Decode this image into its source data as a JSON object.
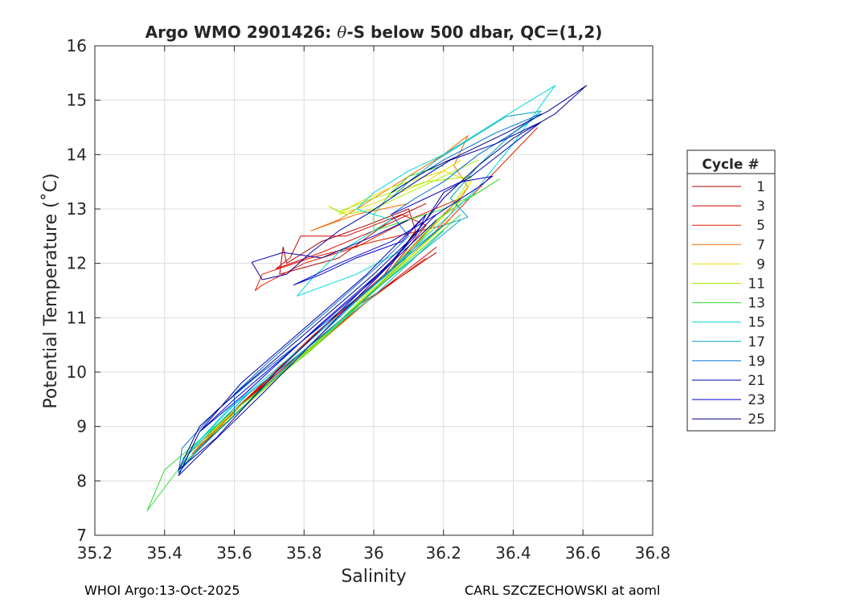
{
  "chart_data": {
    "type": "line",
    "title_main": "Argo WMO 2901426: ",
    "title_theta": "θ",
    "title_rest": "-S below 500 dbar,  QC=(1,2)",
    "xlabel": "Salinity",
    "ylabel": "Potential Temperature (˚C)",
    "xlim": [
      35.2,
      36.8
    ],
    "ylim": [
      7,
      16
    ],
    "xticks": [
      35.2,
      35.4,
      35.6,
      35.8,
      36,
      36.2,
      36.4,
      36.6,
      36.8
    ],
    "xtick_labels": [
      "35.2",
      "35.4",
      "35.6",
      "35.8",
      "36",
      "36.2",
      "36.4",
      "36.6",
      "36.8"
    ],
    "yticks": [
      7,
      8,
      9,
      10,
      11,
      12,
      13,
      14,
      15,
      16
    ],
    "ytick_labels": [
      "7",
      "8",
      "9",
      "10",
      "11",
      "12",
      "13",
      "14",
      "15",
      "16"
    ],
    "grid": true,
    "legend_title": "Cycle #",
    "legend_position": "right",
    "series": [
      {
        "name": "1",
        "color": "#b00000",
        "points": [
          [
            36.18,
            12.2
          ],
          [
            35.95,
            11.2
          ],
          [
            35.8,
            10.4
          ],
          [
            35.62,
            9.4
          ],
          [
            35.55,
            9.0
          ],
          [
            35.65,
            9.6
          ],
          [
            35.82,
            10.6
          ],
          [
            36.02,
            11.7
          ],
          [
            36.12,
            12.6
          ],
          [
            36.1,
            13.0
          ],
          [
            35.98,
            12.7
          ],
          [
            35.85,
            12.4
          ],
          [
            35.75,
            12.0
          ],
          [
            35.74,
            12.3
          ],
          [
            35.73,
            11.8
          ],
          [
            35.9,
            12.1
          ],
          [
            36.05,
            12.8
          ],
          [
            36.15,
            13.1
          ]
        ]
      },
      {
        "name": "3",
        "color": "#d00000",
        "points": [
          [
            36.18,
            12.3
          ],
          [
            35.98,
            11.3
          ],
          [
            35.8,
            10.4
          ],
          [
            35.6,
            9.3
          ],
          [
            35.5,
            8.6
          ],
          [
            35.62,
            9.4
          ],
          [
            35.85,
            10.8
          ],
          [
            36.05,
            11.9
          ],
          [
            36.15,
            12.7
          ],
          [
            36.08,
            12.9
          ],
          [
            35.92,
            12.5
          ],
          [
            35.79,
            12.5
          ],
          [
            35.76,
            12.1
          ],
          [
            35.72,
            11.9
          ],
          [
            35.85,
            12.2
          ],
          [
            36.0,
            12.6
          ],
          [
            36.1,
            12.9
          ]
        ]
      },
      {
        "name": "5",
        "color": "#e82000",
        "points": [
          [
            36.15,
            12.1
          ],
          [
            35.96,
            11.2
          ],
          [
            35.78,
            10.2
          ],
          [
            35.58,
            9.2
          ],
          [
            35.48,
            8.5
          ],
          [
            35.6,
            9.3
          ],
          [
            35.83,
            10.7
          ],
          [
            36.04,
            11.8
          ],
          [
            36.14,
            12.5
          ],
          [
            36.2,
            12.9
          ],
          [
            36.25,
            13.2
          ],
          [
            36.1,
            12.8
          ],
          [
            35.95,
            12.3
          ],
          [
            35.8,
            12.0
          ],
          [
            35.68,
            11.6
          ],
          [
            35.66,
            11.5
          ],
          [
            35.68,
            11.8
          ],
          [
            35.82,
            12.1
          ],
          [
            36.0,
            12.4
          ],
          [
            36.2,
            12.7
          ],
          [
            36.47,
            14.5
          ]
        ]
      },
      {
        "name": "7",
        "color": "#f06a00",
        "points": [
          [
            36.2,
            12.6
          ],
          [
            36.0,
            11.4
          ],
          [
            35.8,
            10.3
          ],
          [
            35.6,
            9.3
          ],
          [
            35.5,
            8.7
          ],
          [
            35.62,
            9.4
          ],
          [
            35.85,
            10.6
          ],
          [
            36.05,
            11.8
          ],
          [
            36.15,
            12.4
          ],
          [
            36.22,
            12.9
          ],
          [
            36.27,
            13.4
          ],
          [
            36.23,
            13.8
          ],
          [
            36.27,
            14.35
          ],
          [
            36.2,
            14.0
          ],
          [
            36.1,
            13.6
          ],
          [
            36.0,
            13.2
          ],
          [
            35.9,
            12.8
          ],
          [
            35.82,
            12.6
          ],
          [
            35.95,
            12.9
          ],
          [
            36.1,
            13.1
          ]
        ]
      },
      {
        "name": "9",
        "color": "#e6e000",
        "points": [
          [
            36.22,
            12.8
          ],
          [
            36.0,
            11.5
          ],
          [
            35.82,
            10.4
          ],
          [
            35.62,
            9.4
          ],
          [
            35.5,
            8.7
          ],
          [
            35.65,
            9.5
          ],
          [
            35.88,
            10.8
          ],
          [
            36.06,
            11.9
          ],
          [
            36.16,
            12.6
          ],
          [
            36.22,
            13.0
          ],
          [
            36.28,
            13.5
          ],
          [
            36.2,
            13.7
          ],
          [
            36.05,
            13.4
          ],
          [
            35.95,
            13.1
          ],
          [
            35.9,
            12.9
          ],
          [
            36.0,
            13.1
          ],
          [
            36.15,
            13.5
          ],
          [
            36.25,
            13.9
          ]
        ]
      },
      {
        "name": "11",
        "color": "#aaee00",
        "points": [
          [
            36.2,
            12.7
          ],
          [
            35.98,
            11.4
          ],
          [
            35.8,
            10.3
          ],
          [
            35.6,
            9.3
          ],
          [
            35.45,
            8.4
          ],
          [
            35.6,
            9.2
          ],
          [
            35.85,
            10.6
          ],
          [
            36.05,
            11.9
          ],
          [
            36.15,
            12.6
          ],
          [
            36.22,
            13.0
          ],
          [
            36.28,
            13.6
          ],
          [
            36.15,
            13.5
          ],
          [
            36.0,
            13.2
          ],
          [
            35.9,
            12.95
          ],
          [
            35.87,
            13.05
          ],
          [
            35.92,
            12.9
          ],
          [
            36.0,
            13.0
          ],
          [
            36.1,
            13.3
          ],
          [
            36.2,
            13.6
          ],
          [
            36.3,
            13.9
          ]
        ]
      },
      {
        "name": "13",
        "color": "#33dd33",
        "points": [
          [
            36.25,
            12.9
          ],
          [
            36.02,
            11.6
          ],
          [
            35.82,
            10.4
          ],
          [
            35.6,
            9.3
          ],
          [
            35.4,
            8.2
          ],
          [
            35.35,
            7.45
          ],
          [
            35.45,
            8.3
          ],
          [
            35.68,
            9.7
          ],
          [
            35.9,
            10.9
          ],
          [
            36.08,
            12.0
          ],
          [
            36.18,
            12.8
          ],
          [
            36.25,
            13.1
          ],
          [
            36.36,
            13.55
          ],
          [
            36.3,
            13.3
          ],
          [
            36.2,
            13.0
          ],
          [
            36.1,
            12.8
          ],
          [
            36.0,
            12.6
          ],
          [
            36.0,
            12.9
          ],
          [
            36.05,
            13.3
          ],
          [
            36.1,
            13.6
          ],
          [
            36.2,
            13.8
          ]
        ]
      },
      {
        "name": "15",
        "color": "#00d8d8",
        "points": [
          [
            36.2,
            12.6
          ],
          [
            36.0,
            11.4
          ],
          [
            35.8,
            10.4
          ],
          [
            35.6,
            9.4
          ],
          [
            35.45,
            8.4
          ],
          [
            35.58,
            9.3
          ],
          [
            35.82,
            10.6
          ],
          [
            36.04,
            11.8
          ],
          [
            36.15,
            12.5
          ],
          [
            36.22,
            12.9
          ],
          [
            36.3,
            13.4
          ],
          [
            36.4,
            14.2
          ],
          [
            36.52,
            15.27
          ],
          [
            36.4,
            14.8
          ],
          [
            36.3,
            14.4
          ],
          [
            36.2,
            14.0
          ],
          [
            36.1,
            13.7
          ],
          [
            36.0,
            13.3
          ],
          [
            35.95,
            13.0
          ],
          [
            36.05,
            12.8
          ],
          [
            35.9,
            12.2
          ],
          [
            35.82,
            11.7
          ],
          [
            35.78,
            11.4
          ],
          [
            35.95,
            11.8
          ],
          [
            36.1,
            12.3
          ]
        ]
      },
      {
        "name": "17",
        "color": "#00a8b8",
        "points": [
          [
            36.25,
            12.8
          ],
          [
            36.02,
            11.6
          ],
          [
            35.84,
            10.6
          ],
          [
            35.64,
            9.6
          ],
          [
            35.47,
            8.5
          ],
          [
            35.44,
            8.2
          ],
          [
            35.55,
            8.9
          ],
          [
            35.75,
            10.1
          ],
          [
            35.95,
            11.3
          ],
          [
            36.1,
            12.2
          ],
          [
            36.2,
            12.7
          ],
          [
            36.27,
            12.85
          ],
          [
            36.22,
            13.2
          ],
          [
            36.3,
            13.8
          ],
          [
            36.4,
            14.4
          ],
          [
            36.48,
            14.8
          ],
          [
            36.38,
            14.7
          ],
          [
            36.28,
            14.3
          ],
          [
            36.18,
            13.9
          ],
          [
            36.1,
            13.5
          ],
          [
            36.05,
            13.2
          ]
        ]
      },
      {
        "name": "19",
        "color": "#0070d0",
        "points": [
          [
            36.2,
            12.7
          ],
          [
            36.0,
            11.6
          ],
          [
            35.82,
            10.7
          ],
          [
            35.66,
            9.9
          ],
          [
            35.55,
            9.3
          ],
          [
            35.45,
            8.6
          ],
          [
            35.44,
            8.15
          ],
          [
            35.5,
            8.6
          ],
          [
            35.6,
            9.2
          ],
          [
            35.6,
            9.6
          ],
          [
            35.7,
            10.2
          ],
          [
            35.88,
            11.2
          ],
          [
            36.02,
            12.0
          ],
          [
            36.1,
            12.5
          ],
          [
            36.05,
            12.9
          ],
          [
            36.12,
            13.2
          ],
          [
            36.2,
            13.5
          ],
          [
            36.3,
            14.0
          ],
          [
            36.4,
            14.4
          ],
          [
            36.48,
            14.75
          ],
          [
            36.35,
            14.4
          ],
          [
            36.2,
            13.9
          ],
          [
            36.1,
            13.5
          ]
        ]
      },
      {
        "name": "21",
        "color": "#0000b0",
        "points": [
          [
            36.15,
            12.9
          ],
          [
            35.98,
            11.8
          ],
          [
            35.8,
            10.8
          ],
          [
            35.62,
            9.8
          ],
          [
            35.5,
            8.9
          ],
          [
            35.44,
            8.1
          ],
          [
            35.52,
            8.6
          ],
          [
            35.68,
            9.6
          ],
          [
            35.88,
            10.9
          ],
          [
            36.05,
            12.0
          ],
          [
            36.15,
            12.8
          ],
          [
            36.2,
            13.3
          ],
          [
            36.28,
            13.6
          ],
          [
            36.38,
            14.1
          ],
          [
            36.48,
            14.6
          ],
          [
            36.35,
            14.2
          ],
          [
            36.22,
            13.9
          ],
          [
            36.12,
            13.5
          ],
          [
            36.05,
            13.2
          ],
          [
            35.98,
            12.9
          ],
          [
            35.9,
            12.6
          ],
          [
            35.82,
            12.2
          ],
          [
            35.75,
            11.8
          ],
          [
            35.68,
            11.7
          ],
          [
            35.65,
            12.02
          ],
          [
            35.74,
            12.2
          ],
          [
            35.85,
            12.1
          ],
          [
            36.0,
            12.5
          ],
          [
            36.1,
            12.8
          ]
        ]
      },
      {
        "name": "23",
        "color": "#0000d0",
        "points": [
          [
            36.18,
            12.8
          ],
          [
            36.0,
            11.7
          ],
          [
            35.8,
            10.6
          ],
          [
            35.6,
            9.5
          ],
          [
            35.5,
            8.9
          ],
          [
            35.63,
            9.6
          ],
          [
            35.85,
            10.9
          ],
          [
            36.03,
            11.9
          ],
          [
            36.12,
            12.5
          ],
          [
            36.15,
            12.9
          ],
          [
            36.08,
            12.4
          ],
          [
            35.95,
            12.1
          ],
          [
            35.85,
            11.8
          ],
          [
            35.77,
            11.6
          ],
          [
            35.9,
            12.0
          ],
          [
            36.05,
            12.4
          ],
          [
            36.18,
            12.9
          ],
          [
            36.3,
            13.4
          ],
          [
            36.34,
            13.6
          ],
          [
            36.25,
            13.5
          ],
          [
            36.15,
            13.2
          ],
          [
            36.05,
            12.9
          ]
        ]
      },
      {
        "name": "25",
        "color": "#00008c",
        "points": [
          [
            36.18,
            12.9
          ],
          [
            36.0,
            11.8
          ],
          [
            35.82,
            10.8
          ],
          [
            35.62,
            9.7
          ],
          [
            35.5,
            9.0
          ],
          [
            35.44,
            8.2
          ],
          [
            35.55,
            8.8
          ],
          [
            35.72,
            10.0
          ],
          [
            35.9,
            11.1
          ],
          [
            36.06,
            12.1
          ],
          [
            36.15,
            12.8
          ],
          [
            36.2,
            13.2
          ],
          [
            36.3,
            13.8
          ],
          [
            36.4,
            14.3
          ],
          [
            36.52,
            14.75
          ],
          [
            36.61,
            15.27
          ],
          [
            36.5,
            14.8
          ],
          [
            36.38,
            14.4
          ],
          [
            36.25,
            14.0
          ],
          [
            36.15,
            13.7
          ],
          [
            36.05,
            13.3
          ]
        ]
      }
    ]
  },
  "footer": {
    "left": "WHOI Argo:13-Oct-2025",
    "right": "CARL SZCZECHOWSKI at aoml"
  }
}
